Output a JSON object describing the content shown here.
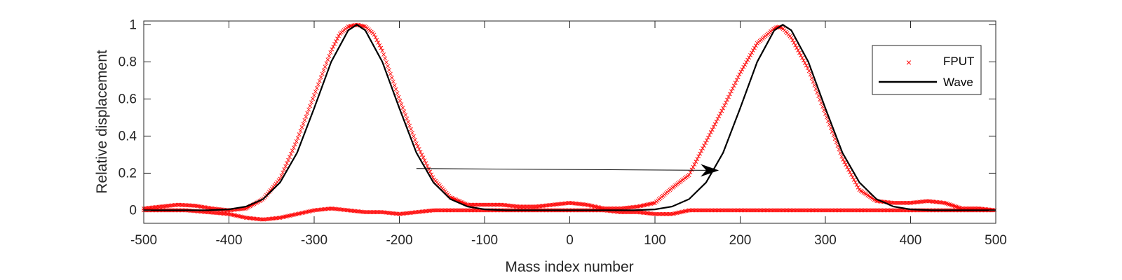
{
  "chart_data": {
    "type": "scatter",
    "title": "",
    "xlabel": "Mass index number",
    "ylabel": "Relative displacement",
    "xlim": [
      -500,
      500
    ],
    "ylim": [
      -0.07,
      1.02
    ],
    "x_ticks": [
      -500,
      -400,
      -300,
      -200,
      -100,
      0,
      100,
      200,
      300,
      400,
      500
    ],
    "x_tick_labels": [
      "-500",
      "-400",
      "-300",
      "-200",
      "-100",
      "0",
      "100",
      "200",
      "300",
      "400",
      "500"
    ],
    "y_ticks": [
      0,
      0.2,
      0.4,
      0.6,
      0.8,
      1
    ],
    "y_tick_labels": [
      "0",
      "0.2",
      "0.4",
      "0.6",
      "0.8",
      "1"
    ],
    "grid": false,
    "legend_position": "top-right",
    "colors": {
      "fput": "#ff0000",
      "wave": "#000000",
      "axis": "#262626"
    },
    "series": [
      {
        "name": "FPUT",
        "style": "x-markers",
        "x": [
          -500,
          -480,
          -460,
          -440,
          -420,
          -400,
          -380,
          -360,
          -340,
          -320,
          -300,
          -280,
          -270,
          -260,
          -250,
          -240,
          -230,
          -220,
          -200,
          -180,
          -160,
          -140,
          -120,
          -100,
          -80,
          -60,
          -40,
          -20,
          0,
          20,
          40,
          60,
          80,
          100,
          120,
          140,
          160,
          180,
          200,
          220,
          240,
          245,
          250,
          260,
          280,
          300,
          320,
          340,
          360,
          380,
          400,
          420,
          440,
          460,
          480,
          500
        ],
        "y": [
          0.01,
          0.02,
          0.03,
          0.025,
          0.01,
          0.0,
          0.01,
          0.06,
          0.17,
          0.38,
          0.62,
          0.86,
          0.95,
          0.99,
          1.0,
          0.99,
          0.95,
          0.86,
          0.6,
          0.36,
          0.17,
          0.07,
          0.03,
          0.03,
          0.03,
          0.02,
          0.02,
          0.03,
          0.04,
          0.03,
          0.01,
          0.01,
          0.02,
          0.04,
          0.12,
          0.19,
          0.37,
          0.55,
          0.74,
          0.9,
          0.98,
          0.99,
          0.98,
          0.93,
          0.76,
          0.52,
          0.28,
          0.11,
          0.05,
          0.04,
          0.04,
          0.05,
          0.04,
          0.01,
          0.01,
          0.0
        ]
      },
      {
        "name": "FPUT",
        "style": "x-markers",
        "x": [
          -500,
          -450,
          -400,
          -380,
          -360,
          -340,
          -320,
          -300,
          -280,
          -260,
          -240,
          -220,
          -200,
          -180,
          -160,
          -140,
          -120,
          -100,
          -80,
          -60,
          -40,
          -20,
          0,
          20,
          40,
          60,
          80,
          100,
          120,
          140,
          160,
          180,
          200,
          250,
          300,
          350,
          400,
          450,
          500
        ],
        "y": [
          0.0,
          0.0,
          -0.02,
          -0.04,
          -0.05,
          -0.04,
          -0.02,
          0.0,
          0.01,
          0.0,
          -0.01,
          -0.01,
          -0.02,
          -0.01,
          0.0,
          0.0,
          0.0,
          0.0,
          0.0,
          0.0,
          0.0,
          0.0,
          0.0,
          0.0,
          0.0,
          -0.01,
          -0.01,
          -0.02,
          -0.02,
          0.0,
          0.0,
          0.0,
          0.0,
          0.0,
          0.0,
          0.0,
          0.0,
          0.0,
          0.0
        ]
      },
      {
        "name": "Wave",
        "style": "line",
        "x": [
          -500,
          -450,
          -425,
          -400,
          -380,
          -360,
          -340,
          -320,
          -300,
          -280,
          -260,
          -250,
          -240,
          -220,
          -200,
          -180,
          -160,
          -140,
          -120,
          -100,
          -75,
          -50,
          0,
          50,
          75,
          100,
          120,
          140,
          160,
          180,
          200,
          220,
          240,
          250,
          260,
          280,
          300,
          320,
          340,
          360,
          380,
          400,
          425,
          450,
          500
        ],
        "y": [
          0,
          0,
          0.0,
          0.005,
          0.02,
          0.06,
          0.15,
          0.31,
          0.55,
          0.8,
          0.97,
          1.0,
          0.97,
          0.8,
          0.55,
          0.31,
          0.15,
          0.06,
          0.02,
          0.005,
          0,
          0,
          0,
          0,
          0,
          0.005,
          0.02,
          0.06,
          0.15,
          0.31,
          0.55,
          0.8,
          0.97,
          1.0,
          0.97,
          0.8,
          0.55,
          0.31,
          0.15,
          0.06,
          0.02,
          0.005,
          0,
          0,
          0
        ]
      }
    ],
    "annotations": [
      {
        "type": "arrow",
        "from": [
          -180,
          0.225
        ],
        "to": [
          175,
          0.215
        ]
      }
    ],
    "legend": [
      {
        "label": "FPUT",
        "marker": "x"
      },
      {
        "label": "Wave",
        "marker": "line"
      }
    ]
  }
}
